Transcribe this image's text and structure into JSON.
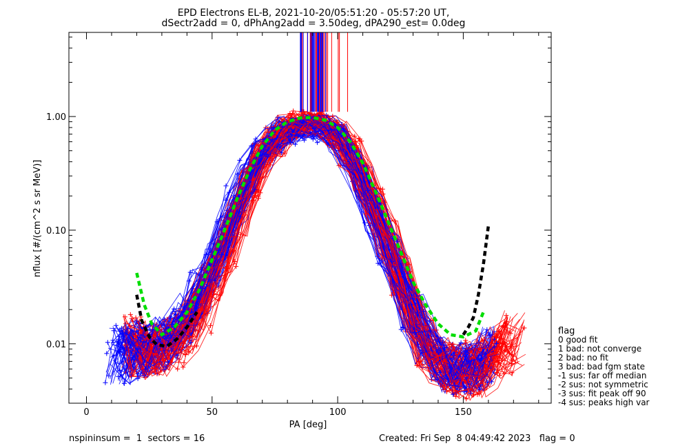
{
  "title_line1": "EPD Electrons EL-B, 2021-10-20/05:51:20 - 05:57:20 UT,",
  "title_line2": "dSectr2add = 0, dPhAng2add = 3.50deg, dPA290_est=    0.0deg",
  "footer_left": "nspininsum =  1  sectors = 16",
  "footer_right": "Created: Fri Sep  8 04:49:42 2023   flag = 0",
  "legend": {
    "title": "flag",
    "items": [
      " 0 good fit",
      " 1 bad: not converge",
      " 2 bad: no fit",
      " 3 bad: bad fgm state",
      "-1 sus: far off median",
      "-2 sus: not symmetric",
      "-3 sus: fit peak off 90",
      "-4 sus: peaks high var"
    ]
  },
  "colors": {
    "series_a": "#ff0000",
    "series_b": "#0000ff",
    "fit_green": "#00dd00",
    "fit_black": "#000000"
  },
  "chart_data": {
    "type": "line",
    "xlabel": "PA [deg]",
    "ylabel": "nflux [#/(cm^2 s sr MeV)]",
    "xlim": [
      -7,
      185
    ],
    "ylim": [
      0.003,
      5.5
    ],
    "yscale": "log",
    "x_ticks": [
      0,
      50,
      100,
      150
    ],
    "x_tick_labels": [
      "0",
      "50",
      "100",
      "150"
    ],
    "y_ticks": [
      0.01,
      0.1,
      1.0
    ],
    "y_tick_labels": [
      "0.01",
      "0.10",
      "1.00"
    ],
    "grid": false,
    "legend_position": "right",
    "series": [
      {
        "color": "red",
        "pa": [
          18,
          22,
          26,
          30,
          35,
          40,
          45,
          50,
          55,
          60,
          65,
          70,
          75,
          80,
          85,
          90,
          95,
          100,
          105,
          110,
          115,
          120,
          125,
          130,
          135,
          140,
          145,
          150,
          155,
          160,
          165,
          170
        ],
        "nflux": [
          0.01,
          0.009,
          0.0085,
          0.009,
          0.01,
          0.013,
          0.02,
          0.033,
          0.065,
          0.13,
          0.25,
          0.42,
          0.6,
          0.76,
          0.85,
          0.88,
          0.83,
          0.7,
          0.5,
          0.3,
          0.16,
          0.085,
          0.04,
          0.02,
          0.01,
          0.007,
          0.006,
          0.0055,
          0.006,
          0.007,
          0.009,
          0.011
        ]
      },
      {
        "color": "blue",
        "pa": [
          12,
          16,
          20,
          25,
          30,
          35,
          40,
          45,
          50,
          55,
          60,
          65,
          70,
          75,
          80,
          85,
          90,
          95,
          100,
          105,
          110,
          115,
          120,
          125,
          130,
          135,
          140,
          145,
          150,
          155,
          160
        ],
        "nflux": [
          0.008,
          0.008,
          0.009,
          0.009,
          0.01,
          0.012,
          0.017,
          0.028,
          0.048,
          0.09,
          0.17,
          0.31,
          0.49,
          0.65,
          0.76,
          0.8,
          0.81,
          0.78,
          0.64,
          0.44,
          0.26,
          0.14,
          0.07,
          0.035,
          0.018,
          0.01,
          0.007,
          0.006,
          0.006,
          0.0065,
          0.008
        ]
      },
      {
        "color": "green",
        "style": "dashed",
        "pa": [
          20,
          23,
          26,
          30,
          35,
          40,
          45,
          50,
          55,
          60,
          65,
          70,
          75,
          80,
          85,
          90,
          95,
          100,
          105,
          110,
          115,
          120,
          125,
          130,
          135,
          140,
          145,
          150,
          155,
          158
        ],
        "nflux": [
          0.042,
          0.022,
          0.015,
          0.012,
          0.014,
          0.019,
          0.03,
          0.055,
          0.1,
          0.19,
          0.34,
          0.55,
          0.76,
          0.9,
          0.97,
          0.98,
          0.93,
          0.8,
          0.6,
          0.39,
          0.22,
          0.12,
          0.065,
          0.035,
          0.022,
          0.015,
          0.012,
          0.0115,
          0.013,
          0.019
        ]
      },
      {
        "color": "black",
        "style": "dashed",
        "pa": [
          20,
          22,
          25,
          28,
          32,
          36,
          40,
          44
        ],
        "nflux": [
          0.027,
          0.016,
          0.0115,
          0.0098,
          0.0095,
          0.011,
          0.014,
          0.019
        ]
      },
      {
        "color": "black",
        "style": "dashed",
        "pa": [
          150,
          152,
          154,
          156,
          158,
          160
        ],
        "nflux": [
          0.012,
          0.014,
          0.017,
          0.027,
          0.05,
          0.11
        ]
      }
    ]
  }
}
